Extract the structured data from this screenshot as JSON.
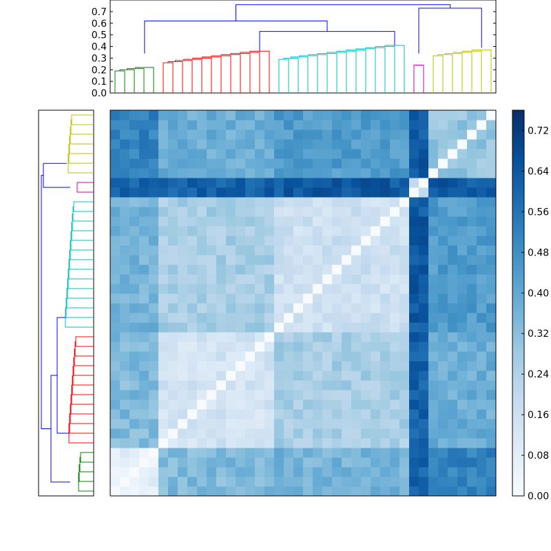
{
  "chart_data": [
    {
      "type": "dendrogram",
      "panel": "top",
      "ylim": [
        0,
        0.8
      ],
      "yticks": [
        0.0,
        0.1,
        0.2,
        0.3,
        0.4,
        0.5,
        0.6,
        0.7
      ],
      "ytick_labels": [
        "0.0",
        "0.1",
        "0.2",
        "0.3",
        "0.4",
        "0.5",
        "0.6",
        "0.7"
      ],
      "leaf_count": 40,
      "clusters": [
        {
          "color": "#008000",
          "leaves": 5
        },
        {
          "color": "#ff0000",
          "leaves": 12
        },
        {
          "color": "#00bfbf",
          "leaves": 14
        },
        {
          "color": "#bf00bf",
          "leaves": 2
        },
        {
          "color": "#bfbf00",
          "leaves": 7
        }
      ],
      "link_color": "#0000ff"
    },
    {
      "type": "dendrogram",
      "panel": "left",
      "orientation": "horizontal",
      "leaf_count": 40,
      "clusters_top_to_bottom": [
        {
          "color": "#bfbf00",
          "leaves": 7
        },
        {
          "color": "#bf00bf",
          "leaves": 2
        },
        {
          "color": "#00bfbf",
          "leaves": 14
        },
        {
          "color": "#ff0000",
          "leaves": 12
        },
        {
          "color": "#008000",
          "leaves": 5
        }
      ],
      "link_color": "#0000ff"
    },
    {
      "type": "heatmap",
      "rows": 40,
      "cols": 40,
      "colormap": "Blues",
      "vmin": 0.0,
      "vmax": 0.76,
      "diagonal_value": 0.0,
      "block_sizes": [
        5,
        12,
        14,
        2,
        7
      ],
      "block_distance_matrix": [
        [
          0.08,
          0.34,
          0.36,
          0.6,
          0.52
        ],
        [
          0.34,
          0.14,
          0.26,
          0.62,
          0.38
        ],
        [
          0.36,
          0.26,
          0.16,
          0.64,
          0.44
        ],
        [
          0.6,
          0.62,
          0.64,
          0.18,
          0.64
        ],
        [
          0.52,
          0.38,
          0.44,
          0.64,
          0.3
        ]
      ]
    },
    {
      "type": "colorbar",
      "colormap": "Blues",
      "range": [
        0.0,
        0.76
      ],
      "ticks": [
        0.0,
        0.08,
        0.16,
        0.24,
        0.32,
        0.4,
        0.48,
        0.56,
        0.64,
        0.72
      ],
      "tick_labels": [
        "0.00",
        "0.08",
        "0.16",
        "0.24",
        "0.32",
        "0.40",
        "0.48",
        "0.56",
        "0.64",
        "0.72"
      ]
    }
  ]
}
